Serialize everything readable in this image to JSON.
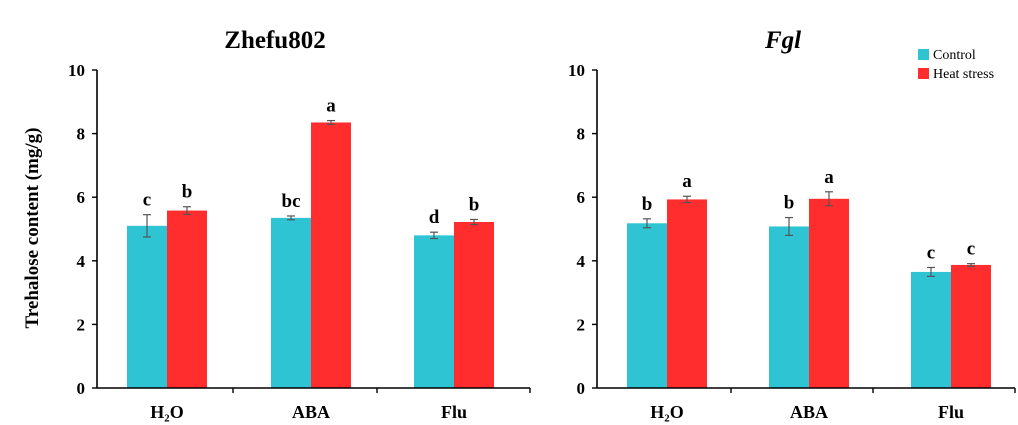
{
  "chart_data": [
    {
      "type": "bar",
      "title": "Zhefu802",
      "title_italic": false,
      "ylabel": "Trehalose content (mg/g)",
      "ylim": [
        0,
        10
      ],
      "yticks": [
        "0",
        "2",
        "4",
        "6",
        "8",
        "10"
      ],
      "categories": [
        "H₂O",
        "ABA",
        "Flu"
      ],
      "series": [
        {
          "name": "Control",
          "color": "#2ec4d4",
          "values": [
            5.1,
            5.35,
            4.8
          ],
          "errors": [
            0.35,
            0.06,
            0.1
          ],
          "letters": [
            "c",
            "bc",
            "d"
          ]
        },
        {
          "name": "Heat stress",
          "color": "#ff2d2d",
          "values": [
            5.58,
            8.35,
            5.22
          ],
          "errors": [
            0.12,
            0.06,
            0.08
          ],
          "letters": [
            "b",
            "a",
            "b"
          ]
        }
      ],
      "show_legend": false
    },
    {
      "type": "bar",
      "title": "Fgl",
      "title_italic": true,
      "ylabel": "",
      "ylim": [
        0,
        10
      ],
      "yticks": [
        "0",
        "2",
        "4",
        "6",
        "8",
        "10"
      ],
      "categories": [
        "H₂O",
        "ABA",
        "Flu"
      ],
      "series": [
        {
          "name": "Control",
          "color": "#2ec4d4",
          "values": [
            5.18,
            5.08,
            3.65
          ],
          "errors": [
            0.14,
            0.28,
            0.14
          ],
          "letters": [
            "b",
            "b",
            "c"
          ]
        },
        {
          "name": "Heat stress",
          "color": "#ff2d2d",
          "values": [
            5.93,
            5.95,
            3.87
          ],
          "errors": [
            0.1,
            0.22,
            0.04
          ],
          "letters": [
            "a",
            "a",
            "c"
          ]
        }
      ],
      "show_legend": true,
      "legend_position": "top-right"
    }
  ]
}
